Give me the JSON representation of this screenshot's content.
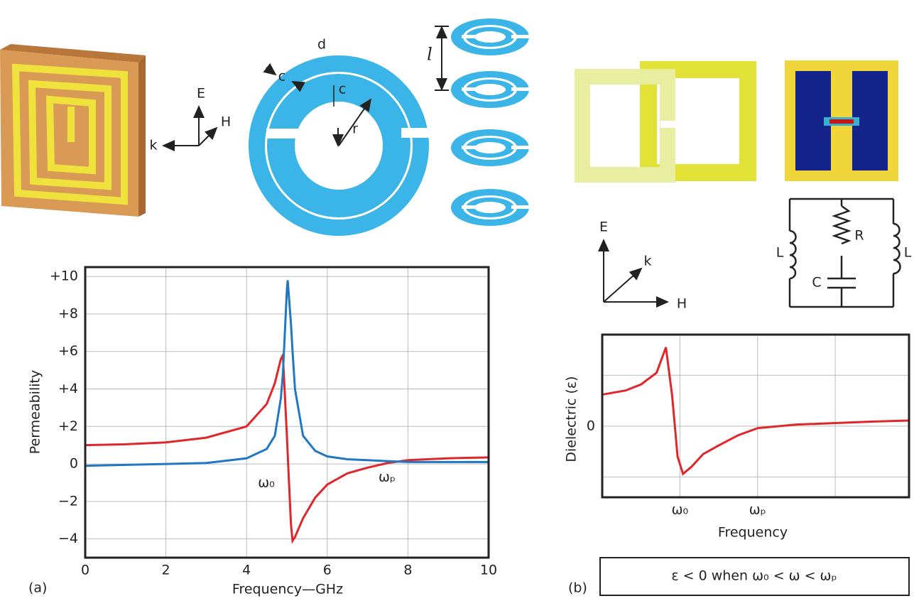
{
  "diagram": {
    "axes_left": [
      "E",
      "H",
      "k"
    ],
    "ring_labels": [
      "c",
      "d",
      "c",
      "r",
      "l"
    ],
    "axes_right": [
      "E",
      "k",
      "H"
    ],
    "circuit": [
      "L",
      "R",
      "L",
      "C"
    ]
  },
  "chart_data": [
    {
      "type": "line",
      "panel": "(a)",
      "xlabel": "Frequency—GHz",
      "ylabel": "Permeability",
      "xlim": [
        0,
        10
      ],
      "ylim": [
        -5,
        10.5
      ],
      "grid": true,
      "xticks": [
        0,
        2,
        4,
        6,
        8,
        10
      ],
      "yticks": [
        {
          "value": 10,
          "label": "+10"
        },
        {
          "value": 8,
          "label": "+8"
        },
        {
          "value": 6,
          "label": "+6"
        },
        {
          "value": 4,
          "label": "+4"
        },
        {
          "value": 2,
          "label": "+2"
        },
        0,
        {
          "value": -2,
          "label": "−2"
        },
        {
          "value": -4,
          "label": "−4"
        }
      ],
      "annotations": [
        "ω₀",
        "ωₚ"
      ],
      "x": [
        0,
        1,
        2,
        3,
        4,
        4.5,
        4.7,
        4.85,
        4.9,
        5.0,
        5.02,
        5.1,
        5.14,
        5.2,
        5.4,
        5.7,
        6,
        6.5,
        7,
        7.5,
        8,
        9,
        10
      ],
      "series": [
        {
          "color": "#e0262b",
          "values": [
            1.0,
            1.05,
            1.15,
            1.4,
            2.0,
            3.2,
            4.3,
            5.6,
            5.8,
            1.5,
            0.5,
            -3.2,
            -4.1,
            -3.9,
            -2.9,
            -1.8,
            -1.1,
            -0.5,
            -0.2,
            0.05,
            0.2,
            0.3,
            0.35
          ]
        },
        {
          "color": "#1f78c1",
          "values": [
            -0.1,
            -0.05,
            0,
            0.05,
            0.3,
            0.8,
            1.5,
            3.5,
            4.8,
            9.3,
            9.8,
            7.5,
            6,
            4,
            1.5,
            0.7,
            0.4,
            0.25,
            0.2,
            0.15,
            0.1,
            0.1,
            0.1
          ]
        }
      ]
    },
    {
      "type": "line",
      "panel": "(b)",
      "xlabel": "Frequency",
      "ylabel": "Dielectric (ε)",
      "xlim": [
        0,
        3.95
      ],
      "ylim": [
        -1.4,
        1.8
      ],
      "grid": true,
      "xticks": [
        {
          "value": 1,
          "label": "ω₀"
        },
        {
          "value": 2,
          "label": "ωₚ"
        },
        {
          "value": 3,
          "label": null
        }
      ],
      "yticks": [
        {
          "value": 1,
          "label": null
        },
        0,
        {
          "value": -1,
          "label": null
        }
      ],
      "annotations": [
        "ε < 0 when ω₀ < ω < ωₚ"
      ],
      "x": [
        0,
        0.3,
        0.5,
        0.7,
        0.82,
        0.9,
        0.97,
        1.04,
        1.15,
        1.3,
        1.5,
        1.75,
        2,
        2.5,
        3,
        3.5,
        3.95
      ],
      "series": [
        {
          "color": "#e0262b",
          "values": [
            0.62,
            0.7,
            0.82,
            1.05,
            1.55,
            0.6,
            -0.6,
            -0.94,
            -0.8,
            -0.55,
            -0.38,
            -0.18,
            -0.04,
            0.03,
            0.06,
            0.09,
            0.11
          ]
        }
      ]
    }
  ]
}
